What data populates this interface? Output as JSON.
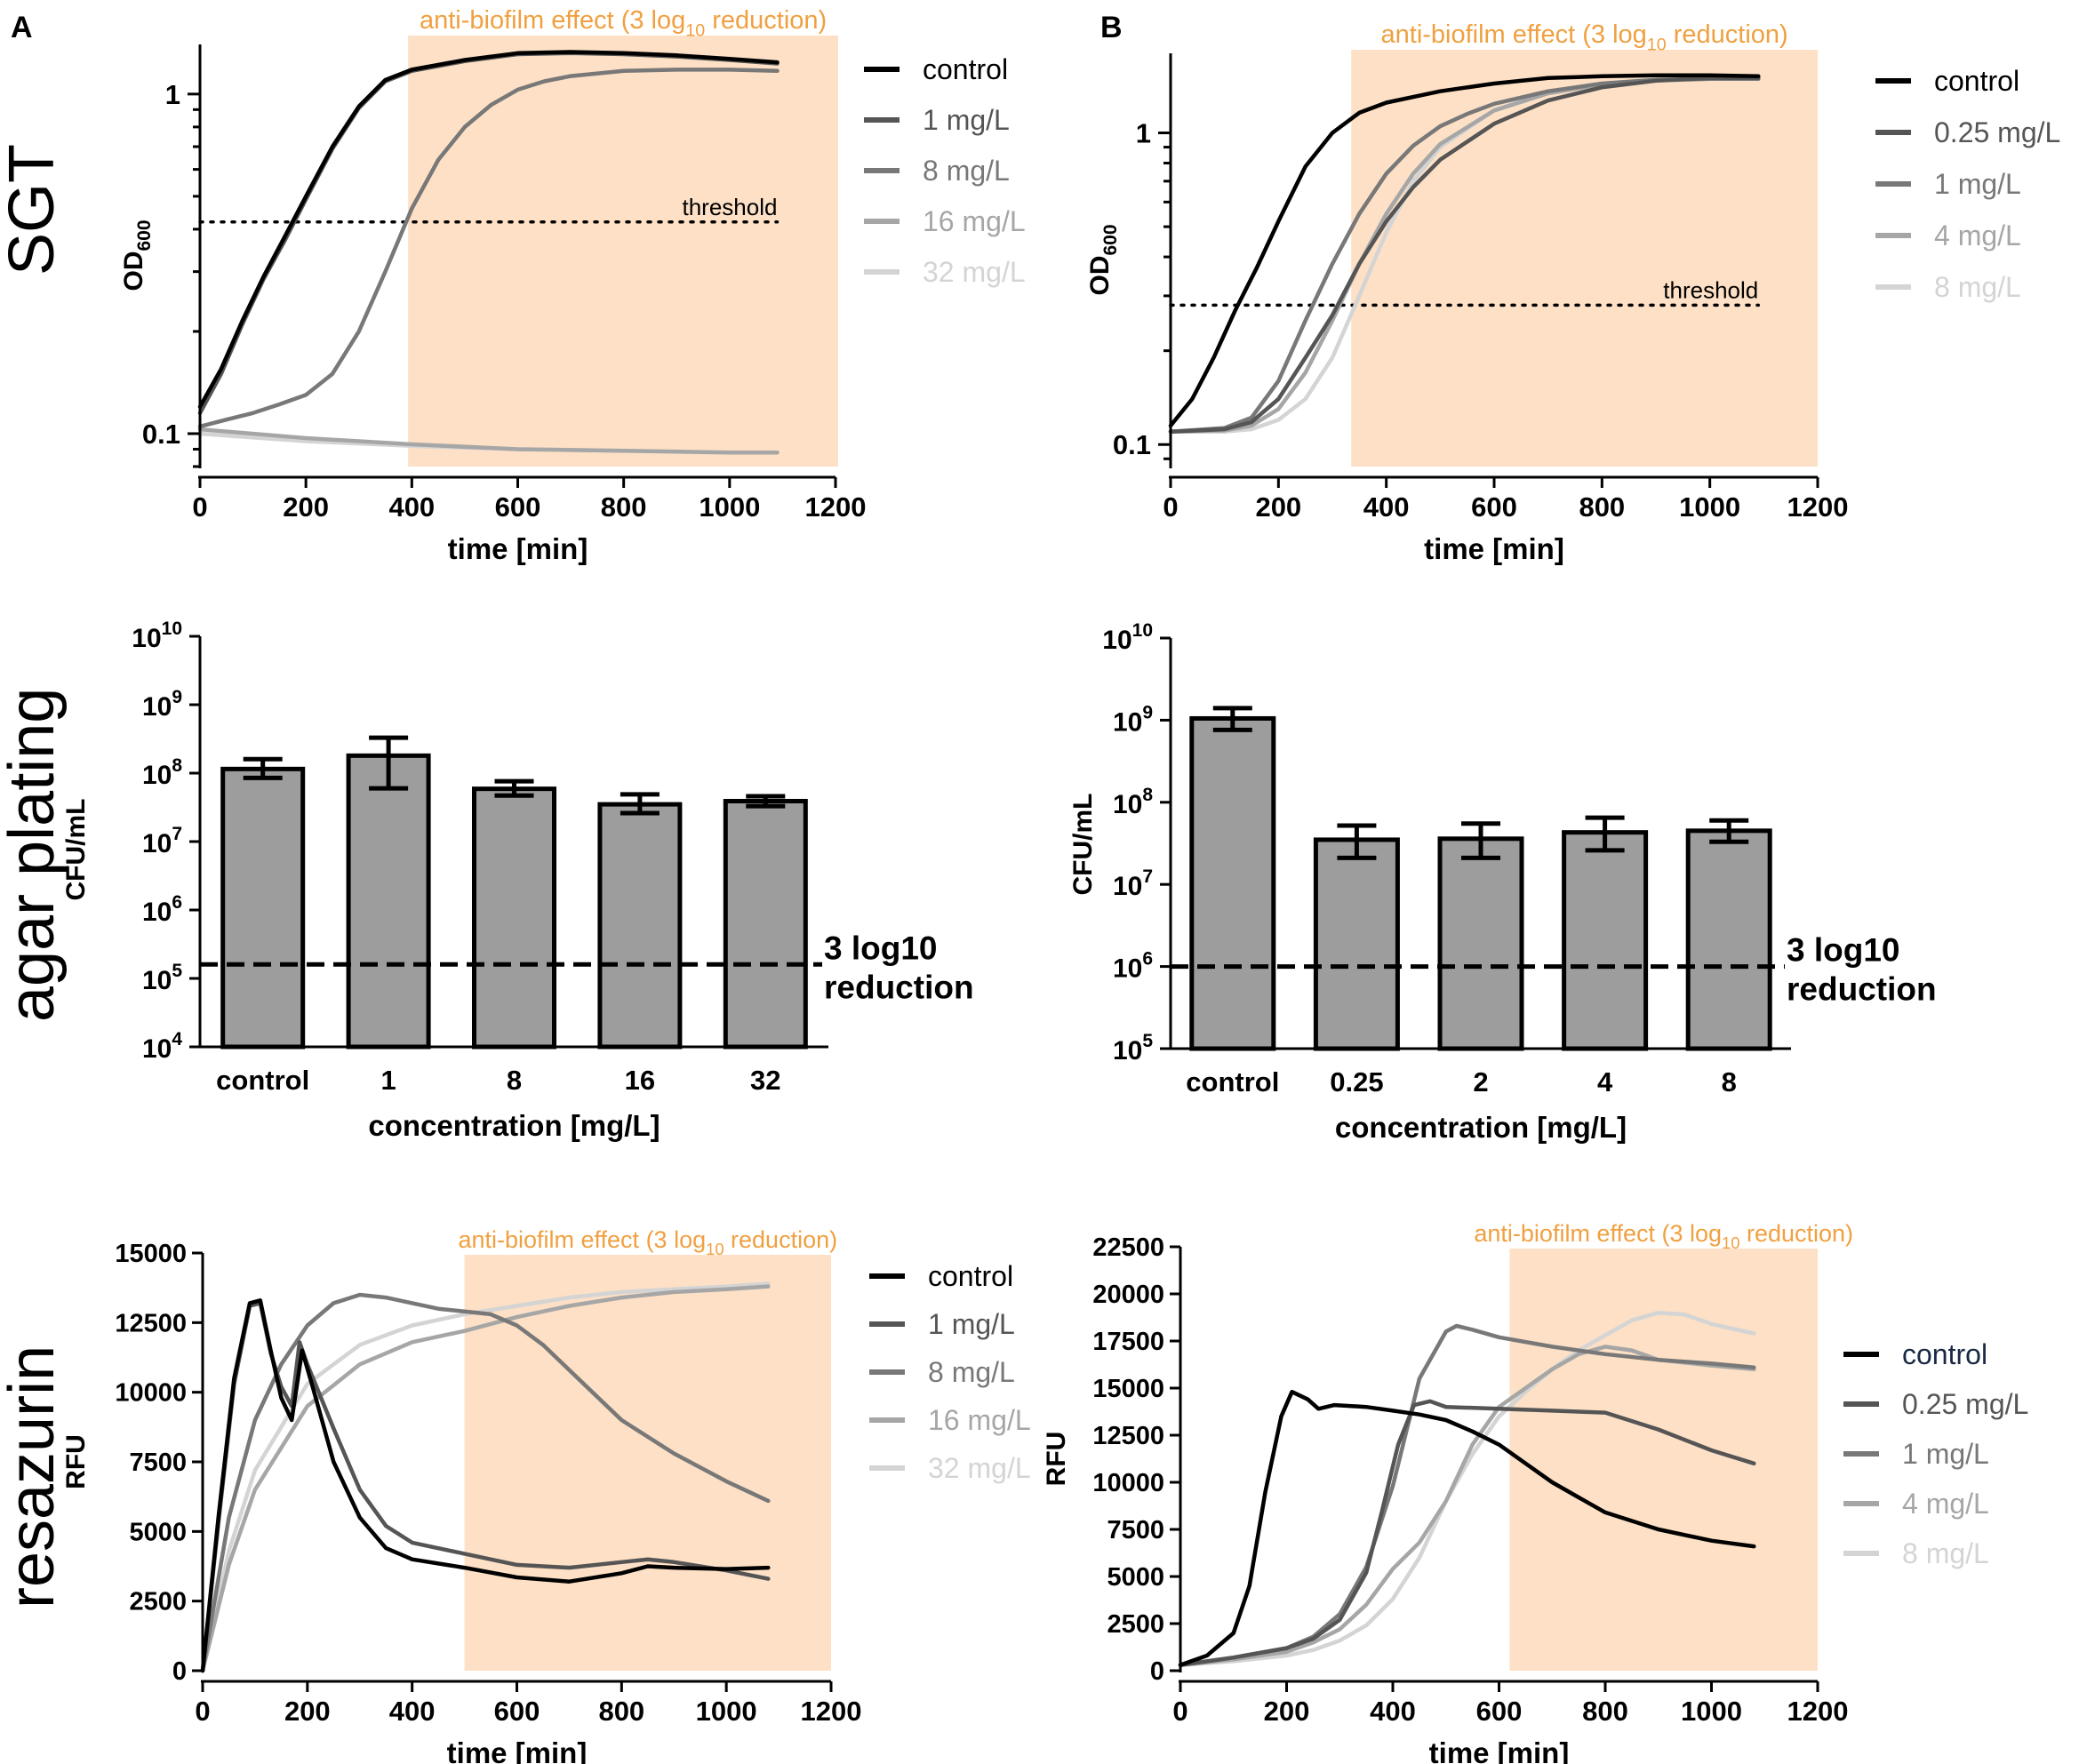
{
  "figure": {
    "panel_labels": [
      "A",
      "B"
    ],
    "row_labels": [
      "SGT",
      "agar plating",
      "resazurin"
    ]
  },
  "colors": {
    "shade": "#fde0c5",
    "orange_text": "#f0a040",
    "axis": "#000000",
    "bar_fill": "#9d9d9e",
    "series": [
      "#000000",
      "#555555",
      "#787878",
      "#a6a6a6",
      "#d4d4d4"
    ]
  },
  "chart_data": [
    {
      "id": "sgt-a",
      "type": "line",
      "title": "anti-biofilm effect (3 log10 reduction)",
      "xlabel": "time [min]",
      "ylabel": "OD600",
      "xlim": [
        0,
        1200
      ],
      "xticks": [
        0,
        200,
        400,
        600,
        800,
        1000,
        1200
      ],
      "yscale": "log",
      "ylim": [
        0.08,
        1.4
      ],
      "ytick_labels": [
        "0.1",
        "1"
      ],
      "shade_start": 393,
      "threshold": {
        "value": 0.42,
        "label": "threshold"
      },
      "series": [
        {
          "name": "control",
          "x": [
            0,
            40,
            80,
            120,
            160,
            200,
            250,
            300,
            350,
            400,
            500,
            600,
            700,
            800,
            900,
            1000,
            1090
          ],
          "y": [
            0.12,
            0.155,
            0.215,
            0.29,
            0.38,
            0.5,
            0.7,
            0.92,
            1.1,
            1.18,
            1.26,
            1.32,
            1.33,
            1.32,
            1.3,
            1.27,
            1.24
          ]
        },
        {
          "name": "1 mg/L",
          "x": [
            0,
            40,
            80,
            120,
            160,
            200,
            250,
            300,
            350,
            400,
            500,
            600,
            700,
            800,
            900,
            1000,
            1090
          ],
          "y": [
            0.115,
            0.15,
            0.21,
            0.285,
            0.37,
            0.49,
            0.69,
            0.91,
            1.09,
            1.17,
            1.25,
            1.31,
            1.32,
            1.31,
            1.29,
            1.26,
            1.23
          ]
        },
        {
          "name": "8 mg/L",
          "x": [
            0,
            50,
            100,
            150,
            200,
            250,
            300,
            350,
            400,
            450,
            500,
            550,
            600,
            650,
            700,
            800,
            900,
            1000,
            1090
          ],
          "y": [
            0.105,
            0.11,
            0.115,
            0.122,
            0.13,
            0.15,
            0.2,
            0.3,
            0.46,
            0.64,
            0.8,
            0.93,
            1.03,
            1.09,
            1.13,
            1.17,
            1.18,
            1.18,
            1.17
          ]
        },
        {
          "name": "16 mg/L",
          "x": [
            0,
            200,
            400,
            600,
            800,
            1000,
            1090
          ],
          "y": [
            0.103,
            0.097,
            0.093,
            0.09,
            0.089,
            0.088,
            0.088
          ]
        },
        {
          "name": "32 mg/L",
          "x": [
            0,
            200,
            400,
            600,
            800,
            1000,
            1090
          ],
          "y": [
            0.1,
            0.095,
            0.092,
            0.09,
            0.089,
            0.088,
            0.088
          ]
        }
      ]
    },
    {
      "id": "sgt-b",
      "type": "line",
      "title": "anti-biofilm effect (3 log10 reduction)",
      "xlabel": "time [min]",
      "ylabel": "OD600",
      "xlim": [
        0,
        1200
      ],
      "xticks": [
        0,
        200,
        400,
        600,
        800,
        1000,
        1200
      ],
      "yscale": "log",
      "ylim": [
        0.085,
        1.8
      ],
      "ytick_labels": [
        "0.1",
        "1"
      ],
      "shade_start": 335,
      "threshold": {
        "value": 0.28,
        "label": "threshold"
      },
      "series": [
        {
          "name": "control",
          "x": [
            0,
            40,
            80,
            120,
            160,
            200,
            250,
            300,
            350,
            400,
            500,
            600,
            700,
            800,
            900,
            1000,
            1090
          ],
          "y": [
            0.115,
            0.14,
            0.19,
            0.27,
            0.37,
            0.52,
            0.78,
            1.0,
            1.16,
            1.25,
            1.36,
            1.44,
            1.5,
            1.52,
            1.53,
            1.53,
            1.52
          ]
        },
        {
          "name": "0.25 mg/L",
          "x": [
            0,
            100,
            150,
            200,
            250,
            300,
            350,
            400,
            450,
            500,
            600,
            700,
            800,
            900,
            1000,
            1090
          ],
          "y": [
            0.11,
            0.112,
            0.118,
            0.14,
            0.19,
            0.26,
            0.38,
            0.52,
            0.67,
            0.82,
            1.07,
            1.27,
            1.4,
            1.47,
            1.5,
            1.5
          ]
        },
        {
          "name": "1 mg/L",
          "x": [
            0,
            100,
            150,
            200,
            250,
            300,
            350,
            400,
            450,
            500,
            550,
            600,
            700,
            800,
            900,
            1000,
            1090
          ],
          "y": [
            0.11,
            0.113,
            0.122,
            0.16,
            0.25,
            0.38,
            0.55,
            0.74,
            0.91,
            1.05,
            1.15,
            1.24,
            1.36,
            1.44,
            1.48,
            1.49,
            1.49
          ]
        },
        {
          "name": "4 mg/L",
          "x": [
            0,
            100,
            150,
            200,
            250,
            300,
            350,
            400,
            450,
            500,
            600,
            700,
            800,
            900,
            1000,
            1090
          ],
          "y": [
            0.11,
            0.111,
            0.115,
            0.13,
            0.17,
            0.25,
            0.38,
            0.55,
            0.74,
            0.92,
            1.18,
            1.34,
            1.43,
            1.47,
            1.49,
            1.49
          ]
        },
        {
          "name": "8 mg/L",
          "x": [
            0,
            100,
            150,
            200,
            250,
            300,
            350,
            400,
            450,
            500,
            600,
            700,
            800,
            900,
            1000,
            1090
          ],
          "y": [
            0.11,
            0.11,
            0.112,
            0.12,
            0.14,
            0.19,
            0.3,
            0.48,
            0.7,
            0.9,
            1.18,
            1.35,
            1.44,
            1.48,
            1.5,
            1.5
          ]
        }
      ]
    },
    {
      "id": "plate-a",
      "type": "bar",
      "xlabel": "concentration [mg/L]",
      "ylabel": "CFU/mL",
      "yscale": "log",
      "ylim_exp": [
        4,
        10
      ],
      "categories": [
        "control",
        "1",
        "8",
        "16",
        "32"
      ],
      "values": [
        115000000.0,
        180000000.0,
        59000000.0,
        35000000.0,
        39000000.0
      ],
      "err_low": [
        85000000.0,
        60000000.0,
        47000000.0,
        26000000.0,
        33000000.0
      ],
      "err_high": [
        160000000.0,
        330000000.0,
        76000000.0,
        49000000.0,
        46000000.0
      ],
      "threshold": 160000.0,
      "threshold_label": [
        "3 log10",
        "reduction"
      ]
    },
    {
      "id": "plate-b",
      "type": "bar",
      "xlabel": "concentration [mg/L]",
      "ylabel": "CFU/mL",
      "yscale": "log",
      "ylim_exp": [
        5,
        10
      ],
      "categories": [
        "control",
        "0.25",
        "2",
        "4",
        "8"
      ],
      "values": [
        1050000000.0,
        35000000.0,
        36000000.0,
        43000000.0,
        45000000.0
      ],
      "err_low": [
        760000000.0,
        21000000.0,
        21000000.0,
        26000000.0,
        33000000.0
      ],
      "err_high": [
        1400000000.0,
        52000000.0,
        55000000.0,
        65000000.0,
        60000000.0
      ],
      "threshold": 1000000.0,
      "threshold_label": [
        "3 log10",
        "reduction"
      ]
    },
    {
      "id": "res-a",
      "type": "line",
      "title": "anti-biofilm effect (3 log10 reduction)",
      "xlabel": "time [min]",
      "ylabel": "RFU",
      "xlim": [
        0,
        1200
      ],
      "xticks": [
        0,
        200,
        400,
        600,
        800,
        1000,
        1200
      ],
      "ylim": [
        0,
        15000
      ],
      "yticks": [
        0,
        2500,
        5000,
        7500,
        10000,
        12500,
        15000
      ],
      "shade_start": 500,
      "series": [
        {
          "name": "control",
          "x": [
            0,
            30,
            60,
            90,
            110,
            130,
            150,
            170,
            190,
            210,
            250,
            300,
            350,
            400,
            500,
            600,
            700,
            800,
            850,
            900,
            1000,
            1080
          ],
          "y": [
            0,
            5500,
            10500,
            13200,
            13300,
            11500,
            9800,
            9000,
            11500,
            10200,
            7500,
            5500,
            4400,
            4000,
            3700,
            3350,
            3200,
            3500,
            3750,
            3700,
            3650,
            3700
          ]
        },
        {
          "name": "1 mg/L",
          "x": [
            0,
            30,
            60,
            90,
            110,
            130,
            150,
            170,
            185,
            200,
            250,
            300,
            350,
            400,
            500,
            600,
            700,
            800,
            850,
            900,
            1000,
            1080
          ],
          "y": [
            0,
            5300,
            10300,
            13100,
            13200,
            11400,
            10200,
            9500,
            11800,
            11000,
            8700,
            6500,
            5200,
            4600,
            4200,
            3800,
            3700,
            3900,
            4000,
            3900,
            3600,
            3300
          ]
        },
        {
          "name": "8 mg/L",
          "x": [
            0,
            50,
            100,
            150,
            200,
            250,
            300,
            350,
            400,
            450,
            500,
            550,
            600,
            650,
            700,
            800,
            900,
            1000,
            1080
          ],
          "y": [
            0,
            5500,
            9000,
            11000,
            12400,
            13200,
            13500,
            13400,
            13200,
            13000,
            12900,
            12800,
            12400,
            11700,
            10800,
            9000,
            7800,
            6800,
            6100
          ]
        },
        {
          "name": "16 mg/L",
          "x": [
            0,
            50,
            100,
            200,
            300,
            400,
            500,
            600,
            700,
            800,
            900,
            1000,
            1080
          ],
          "y": [
            0,
            3800,
            6500,
            9500,
            11000,
            11800,
            12200,
            12700,
            13100,
            13400,
            13600,
            13700,
            13800
          ]
        },
        {
          "name": "32 mg/L",
          "x": [
            0,
            50,
            100,
            200,
            300,
            400,
            500,
            600,
            700,
            800,
            900,
            1000,
            1080
          ],
          "y": [
            0,
            4300,
            7200,
            10300,
            11700,
            12400,
            12800,
            13100,
            13400,
            13600,
            13700,
            13800,
            13900
          ]
        }
      ]
    },
    {
      "id": "res-b",
      "type": "line",
      "title": "anti-biofilm effect (3 log10 reduction)",
      "xlabel": "time [min]",
      "ylabel": "RFU",
      "xlim": [
        0,
        1200
      ],
      "xticks": [
        0,
        200,
        400,
        600,
        800,
        1000,
        1200
      ],
      "ylim": [
        0,
        22500
      ],
      "yticks": [
        0,
        2500,
        5000,
        7500,
        10000,
        12500,
        15000,
        17500,
        20000,
        22500
      ],
      "shade_start": 620,
      "series": [
        {
          "name": "control",
          "x": [
            0,
            50,
            100,
            130,
            160,
            190,
            210,
            240,
            260,
            290,
            350,
            400,
            450,
            500,
            550,
            600,
            650,
            700,
            750,
            800,
            900,
            1000,
            1080
          ],
          "y": [
            300,
            800,
            2000,
            4500,
            9500,
            13500,
            14800,
            14400,
            13900,
            14100,
            14000,
            13800,
            13600,
            13300,
            12700,
            12000,
            11000,
            10000,
            9200,
            8400,
            7500,
            6900,
            6600
          ]
        },
        {
          "name": "0.25 mg/L",
          "x": [
            0,
            100,
            200,
            250,
            300,
            350,
            380,
            410,
            440,
            470,
            500,
            600,
            700,
            800,
            900,
            1000,
            1080
          ],
          "y": [
            300,
            700,
            1200,
            1700,
            2700,
            5200,
            8500,
            12000,
            14100,
            14300,
            14000,
            13900,
            13800,
            13700,
            12800,
            11700,
            11000
          ]
        },
        {
          "name": "1 mg/L",
          "x": [
            0,
            100,
            200,
            250,
            300,
            350,
            400,
            450,
            500,
            520,
            550,
            600,
            700,
            800,
            900,
            1000,
            1080
          ],
          "y": [
            300,
            700,
            1200,
            1800,
            3000,
            5500,
            9800,
            15500,
            18000,
            18300,
            18100,
            17700,
            17200,
            16800,
            16500,
            16300,
            16100
          ]
        },
        {
          "name": "4 mg/L",
          "x": [
            0,
            100,
            200,
            250,
            300,
            350,
            400,
            450,
            500,
            550,
            600,
            650,
            700,
            750,
            800,
            850,
            900,
            1000,
            1080
          ],
          "y": [
            300,
            600,
            1000,
            1500,
            2200,
            3500,
            5400,
            6800,
            9000,
            12000,
            14000,
            15000,
            16000,
            16800,
            17200,
            17000,
            16500,
            16200,
            16000
          ]
        },
        {
          "name": "8 mg/L",
          "x": [
            0,
            100,
            200,
            250,
            300,
            350,
            400,
            450,
            500,
            550,
            600,
            650,
            700,
            750,
            800,
            850,
            900,
            950,
            1000,
            1080
          ],
          "y": [
            300,
            500,
            800,
            1100,
            1600,
            2400,
            3800,
            6000,
            9000,
            11500,
            13500,
            14800,
            16000,
            17000,
            17800,
            18600,
            19000,
            18900,
            18400,
            17900
          ]
        }
      ]
    }
  ]
}
